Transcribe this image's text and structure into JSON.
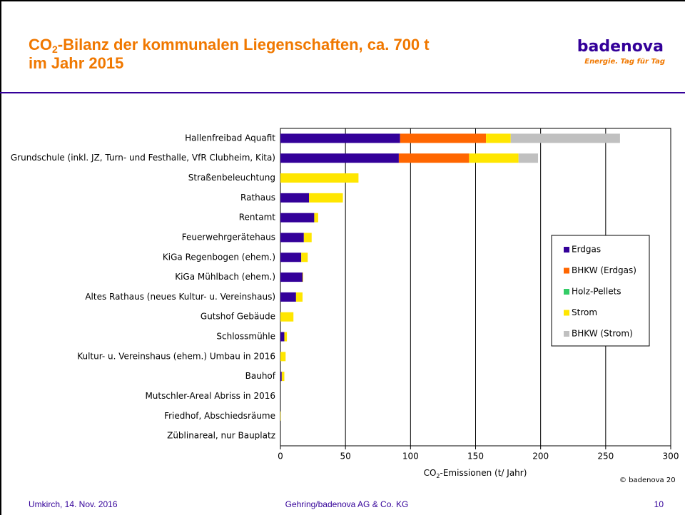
{
  "header": {
    "title": {
      "prefix": "CO",
      "subscript": "2",
      "line1": "-Bilanz der kommunalen Liegenschaften, ca. 700 t",
      "line2": "im Jahr 2015"
    },
    "logo": "badenova",
    "tagline": "Energie. Tag für Tag"
  },
  "chart_data": {
    "type": "bar",
    "orientation": "horizontal",
    "stacked": true,
    "categories": [
      "Hallenfreibad Aquafit",
      "Grundschule (inkl. JZ, Turn- und Festhalle, VfR Clubheim, Kita)",
      "Straßenbeleuchtung",
      "Rathaus",
      "Rentamt",
      "Feuerwehrgerätehaus",
      "KiGa Regenbogen (ehem.)",
      "KiGa Mühlbach (ehem.)",
      "Altes Rathaus (neues Kultur- u. Vereinshaus)",
      "Gutshof Gebäude",
      "Schlossmühle",
      "Kultur- u. Vereinshaus (ehem.) Umbau in 2016",
      "Bauhof",
      "Mutschler-Areal Abriss in 2016",
      "Friedhof, Abschiedsräume",
      "Züblinareal, nur Bauplatz"
    ],
    "series": [
      {
        "name": "Erdgas",
        "color": "#330099",
        "values": [
          92,
          91,
          0,
          22,
          26,
          18,
          16,
          17,
          12,
          0,
          3,
          0,
          1,
          0,
          0,
          0
        ]
      },
      {
        "name": "BHKW (Erdgas)",
        "color": "#ff6600",
        "values": [
          66,
          54,
          0,
          0,
          0,
          0,
          0,
          0,
          0,
          0,
          0,
          0,
          0,
          0,
          0,
          0
        ]
      },
      {
        "name": "Holz-Pellets",
        "color": "#33cc66",
        "values": [
          0,
          0,
          0,
          0,
          0,
          0,
          0,
          0,
          0,
          0,
          0,
          0,
          0,
          0,
          0,
          0
        ]
      },
      {
        "name": "Strom",
        "color": "#ffe600",
        "values": [
          19,
          38,
          60,
          26,
          3,
          6,
          5,
          0.5,
          5,
          10,
          2,
          4,
          2,
          0,
          0.3,
          0
        ]
      },
      {
        "name": "BHKW (Strom)",
        "color": "#c0c0c0",
        "values": [
          84,
          15,
          0,
          0,
          0,
          0,
          0,
          0,
          0,
          0,
          0,
          0,
          0,
          0,
          0,
          0
        ]
      }
    ],
    "xlim": [
      0,
      300
    ],
    "xticks": [
      0,
      50,
      100,
      150,
      200,
      250,
      300
    ],
    "grid": true,
    "xlabel": {
      "prefix": "CO",
      "subscript": "2",
      "rest": "-Emissionen (t/ Jahr)"
    },
    "legend": "right"
  },
  "copyright": "© badenova 20",
  "footer": {
    "left": "Umkirch, 14. Nov. 2016",
    "center": "Gehring/badenova AG & Co. KG",
    "page": "10"
  }
}
